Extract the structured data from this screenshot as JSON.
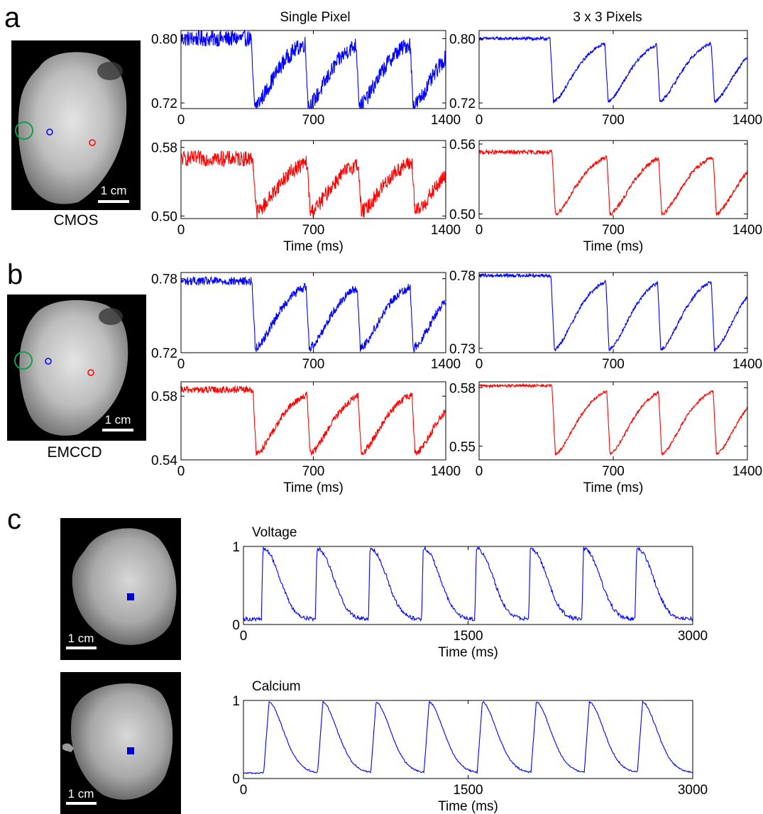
{
  "panels": {
    "a": "a",
    "b": "b",
    "c": "c"
  },
  "column_titles": {
    "single": "Single Pixel",
    "three": "3 x 3 Pixels"
  },
  "images": {
    "a": {
      "caption": "CMOS",
      "scale": "1 cm"
    },
    "b": {
      "caption": "EMCCD",
      "scale": "1 cm"
    },
    "c_top": {
      "scale": "1 cm"
    },
    "c_bottom": {
      "scale": "1 cm"
    }
  },
  "colors": {
    "blue": "#0000ff",
    "red": "#ff0000",
    "green": "#11a04a"
  },
  "chart_data": [
    {
      "type": "line",
      "id": "a-single-blue",
      "panel": "a",
      "column": "Single Pixel",
      "color": "#0000ff",
      "noise": 0.01,
      "xlim": [
        0,
        1400
      ],
      "ylim": [
        0.713,
        0.81
      ],
      "xticks": [
        0,
        700,
        1400
      ],
      "yticks": [
        0.72,
        0.8
      ],
      "xlabel": "",
      "upstrokes": [
        0,
        370,
        655,
        925,
        1210
      ],
      "base": 0.8,
      "peak_low": 0.717
    },
    {
      "type": "line",
      "id": "a-three-blue",
      "panel": "a",
      "column": "3 x 3 Pixels",
      "color": "#0000ff",
      "noise": 0.002,
      "xlim": [
        0,
        1400
      ],
      "ylim": [
        0.713,
        0.81
      ],
      "xticks": [
        0,
        700,
        1400
      ],
      "yticks": [
        0.72,
        0.8
      ],
      "xlabel": "",
      "upstrokes": [
        0,
        370,
        655,
        925,
        1210
      ],
      "base": 0.8,
      "peak_low": 0.722
    },
    {
      "type": "line",
      "id": "a-single-red",
      "panel": "a",
      "column": "Single Pixel",
      "color": "#ff0000",
      "noise": 0.009,
      "xlim": [
        0,
        1400
      ],
      "ylim": [
        0.497,
        0.588
      ],
      "xticks": [
        0,
        700,
        1400
      ],
      "yticks": [
        0.5,
        0.58
      ],
      "xlabel": "Time (ms)",
      "upstrokes": [
        0,
        380,
        665,
        935,
        1220
      ],
      "base": 0.567,
      "peak_low": 0.505
    },
    {
      "type": "line",
      "id": "a-three-red",
      "panel": "a",
      "column": "3 x 3 Pixels",
      "color": "#ff0000",
      "noise": 0.0018,
      "xlim": [
        0,
        1400
      ],
      "ylim": [
        0.496,
        0.563
      ],
      "xticks": [
        0,
        700,
        1400
      ],
      "yticks": [
        0.5,
        0.56
      ],
      "xlabel": "Time (ms)",
      "upstrokes": [
        0,
        380,
        665,
        935,
        1220
      ],
      "base": 0.553,
      "peak_low": 0.5
    },
    {
      "type": "line",
      "id": "b-single-blue",
      "panel": "b",
      "column": "Single Pixel",
      "color": "#0000ff",
      "noise": 0.0035,
      "xlim": [
        0,
        1400
      ],
      "ylim": [
        0.72,
        0.785
      ],
      "xticks": [
        0,
        700,
        1400
      ],
      "yticks": [
        0.72,
        0.78
      ],
      "xlabel": "",
      "upstrokes": [
        0,
        375,
        660,
        930,
        1210
      ],
      "base": 0.778,
      "peak_low": 0.724
    },
    {
      "type": "line",
      "id": "b-three-blue",
      "panel": "b",
      "column": "3 x 3 Pixels",
      "color": "#0000ff",
      "noise": 0.0012,
      "xlim": [
        0,
        1400
      ],
      "ylim": [
        0.727,
        0.782
      ],
      "xticks": [
        0,
        700,
        1400
      ],
      "yticks": [
        0.73,
        0.78
      ],
      "xlabel": "",
      "upstrokes": [
        0,
        375,
        660,
        930,
        1210
      ],
      "base": 0.78,
      "peak_low": 0.729
    },
    {
      "type": "line",
      "id": "b-single-red",
      "panel": "b",
      "column": "Single Pixel",
      "color": "#ff0000",
      "noise": 0.0022,
      "xlim": [
        0,
        1400
      ],
      "ylim": [
        0.54,
        0.589
      ],
      "xticks": [
        0,
        700,
        1400
      ],
      "yticks": [
        0.54,
        0.58
      ],
      "xlabel": "Time (ms)",
      "upstrokes": [
        0,
        380,
        665,
        935,
        1220
      ],
      "base": 0.584,
      "peak_low": 0.544
    },
    {
      "type": "line",
      "id": "b-three-red",
      "panel": "b",
      "column": "3 x 3 Pixels",
      "color": "#ff0000",
      "noise": 0.0007,
      "xlim": [
        0,
        1400
      ],
      "ylim": [
        0.543,
        0.583
      ],
      "xticks": [
        0,
        700,
        1400
      ],
      "yticks": [
        0.55,
        0.58
      ],
      "xlabel": "Time (ms)",
      "upstrokes": [
        0,
        380,
        665,
        935,
        1220
      ],
      "base": 0.581,
      "peak_low": 0.546
    },
    {
      "type": "line",
      "id": "c-voltage",
      "panel": "c",
      "title": "Voltage",
      "color": "#0000ff",
      "noise": 0.025,
      "xlim": [
        0,
        3000
      ],
      "ylim": [
        0,
        1
      ],
      "xticks": [
        0,
        1500,
        3000
      ],
      "yticks": [
        0,
        1
      ],
      "xlabel": "Time (ms)",
      "upstrokes": [
        120,
        480,
        835,
        1190,
        1545,
        1905,
        2260,
        2615
      ],
      "base": 0.07,
      "peak": 0.97,
      "shape": "ap"
    },
    {
      "type": "line",
      "id": "c-calcium",
      "panel": "c",
      "title": "Calcium",
      "color": "#0000ff",
      "noise": 0.01,
      "xlim": [
        0,
        3000
      ],
      "ylim": [
        0,
        1
      ],
      "xticks": [
        0,
        1500,
        3000
      ],
      "yticks": [
        0,
        1
      ],
      "xlabel": "Time (ms)",
      "upstrokes": [
        135,
        495,
        850,
        1205,
        1560,
        1920,
        2275,
        2630
      ],
      "base": 0.07,
      "peak": 0.98,
      "shape": "ca"
    }
  ]
}
